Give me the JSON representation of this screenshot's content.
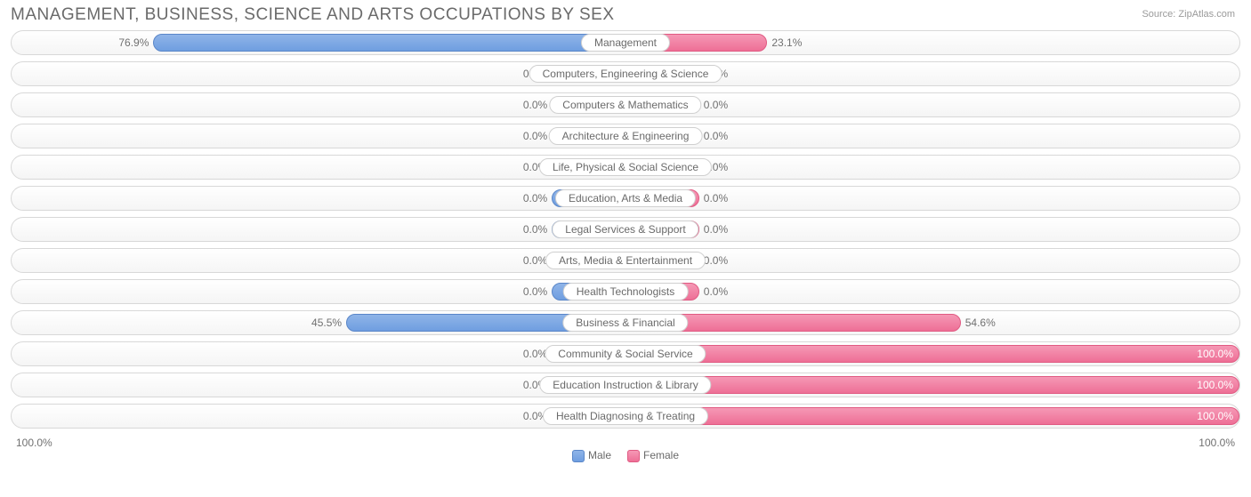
{
  "title": "MANAGEMENT, BUSINESS, SCIENCE AND ARTS OCCUPATIONS BY SEX",
  "source_label": "Source:",
  "source_name": "ZipAtlas.com",
  "chart": {
    "type": "diverging-bar",
    "axis_min_label": "100.0%",
    "axis_max_label": "100.0%",
    "min_bar_pct": 12,
    "colors": {
      "male_fill_top": "#8fb4e8",
      "male_fill_bottom": "#6f9ee0",
      "male_border": "#5a86c8",
      "female_fill_top": "#f598b5",
      "female_fill_bottom": "#ee6f96",
      "female_border": "#e05a82",
      "track_border": "#d8d8d8",
      "text": "#6a6a6a",
      "value_text": "#707070",
      "background": "#ffffff"
    },
    "legend": {
      "male": "Male",
      "female": "Female"
    },
    "rows": [
      {
        "label": "Management",
        "male": 76.9,
        "female": 23.1
      },
      {
        "label": "Computers, Engineering & Science",
        "male": 0.0,
        "female": 0.0
      },
      {
        "label": "Computers & Mathematics",
        "male": 0.0,
        "female": 0.0
      },
      {
        "label": "Architecture & Engineering",
        "male": 0.0,
        "female": 0.0
      },
      {
        "label": "Life, Physical & Social Science",
        "male": 0.0,
        "female": 0.0
      },
      {
        "label": "Education, Arts & Media",
        "male": 0.0,
        "female": 0.0
      },
      {
        "label": "Legal Services & Support",
        "male": 0.0,
        "female": 0.0
      },
      {
        "label": "Arts, Media & Entertainment",
        "male": 0.0,
        "female": 0.0
      },
      {
        "label": "Health Technologists",
        "male": 0.0,
        "female": 0.0
      },
      {
        "label": "Business & Financial",
        "male": 45.5,
        "female": 54.6
      },
      {
        "label": "Community & Social Service",
        "male": 0.0,
        "female": 100.0
      },
      {
        "label": "Education Instruction & Library",
        "male": 0.0,
        "female": 100.0
      },
      {
        "label": "Health Diagnosing & Treating",
        "male": 0.0,
        "female": 100.0
      }
    ]
  }
}
